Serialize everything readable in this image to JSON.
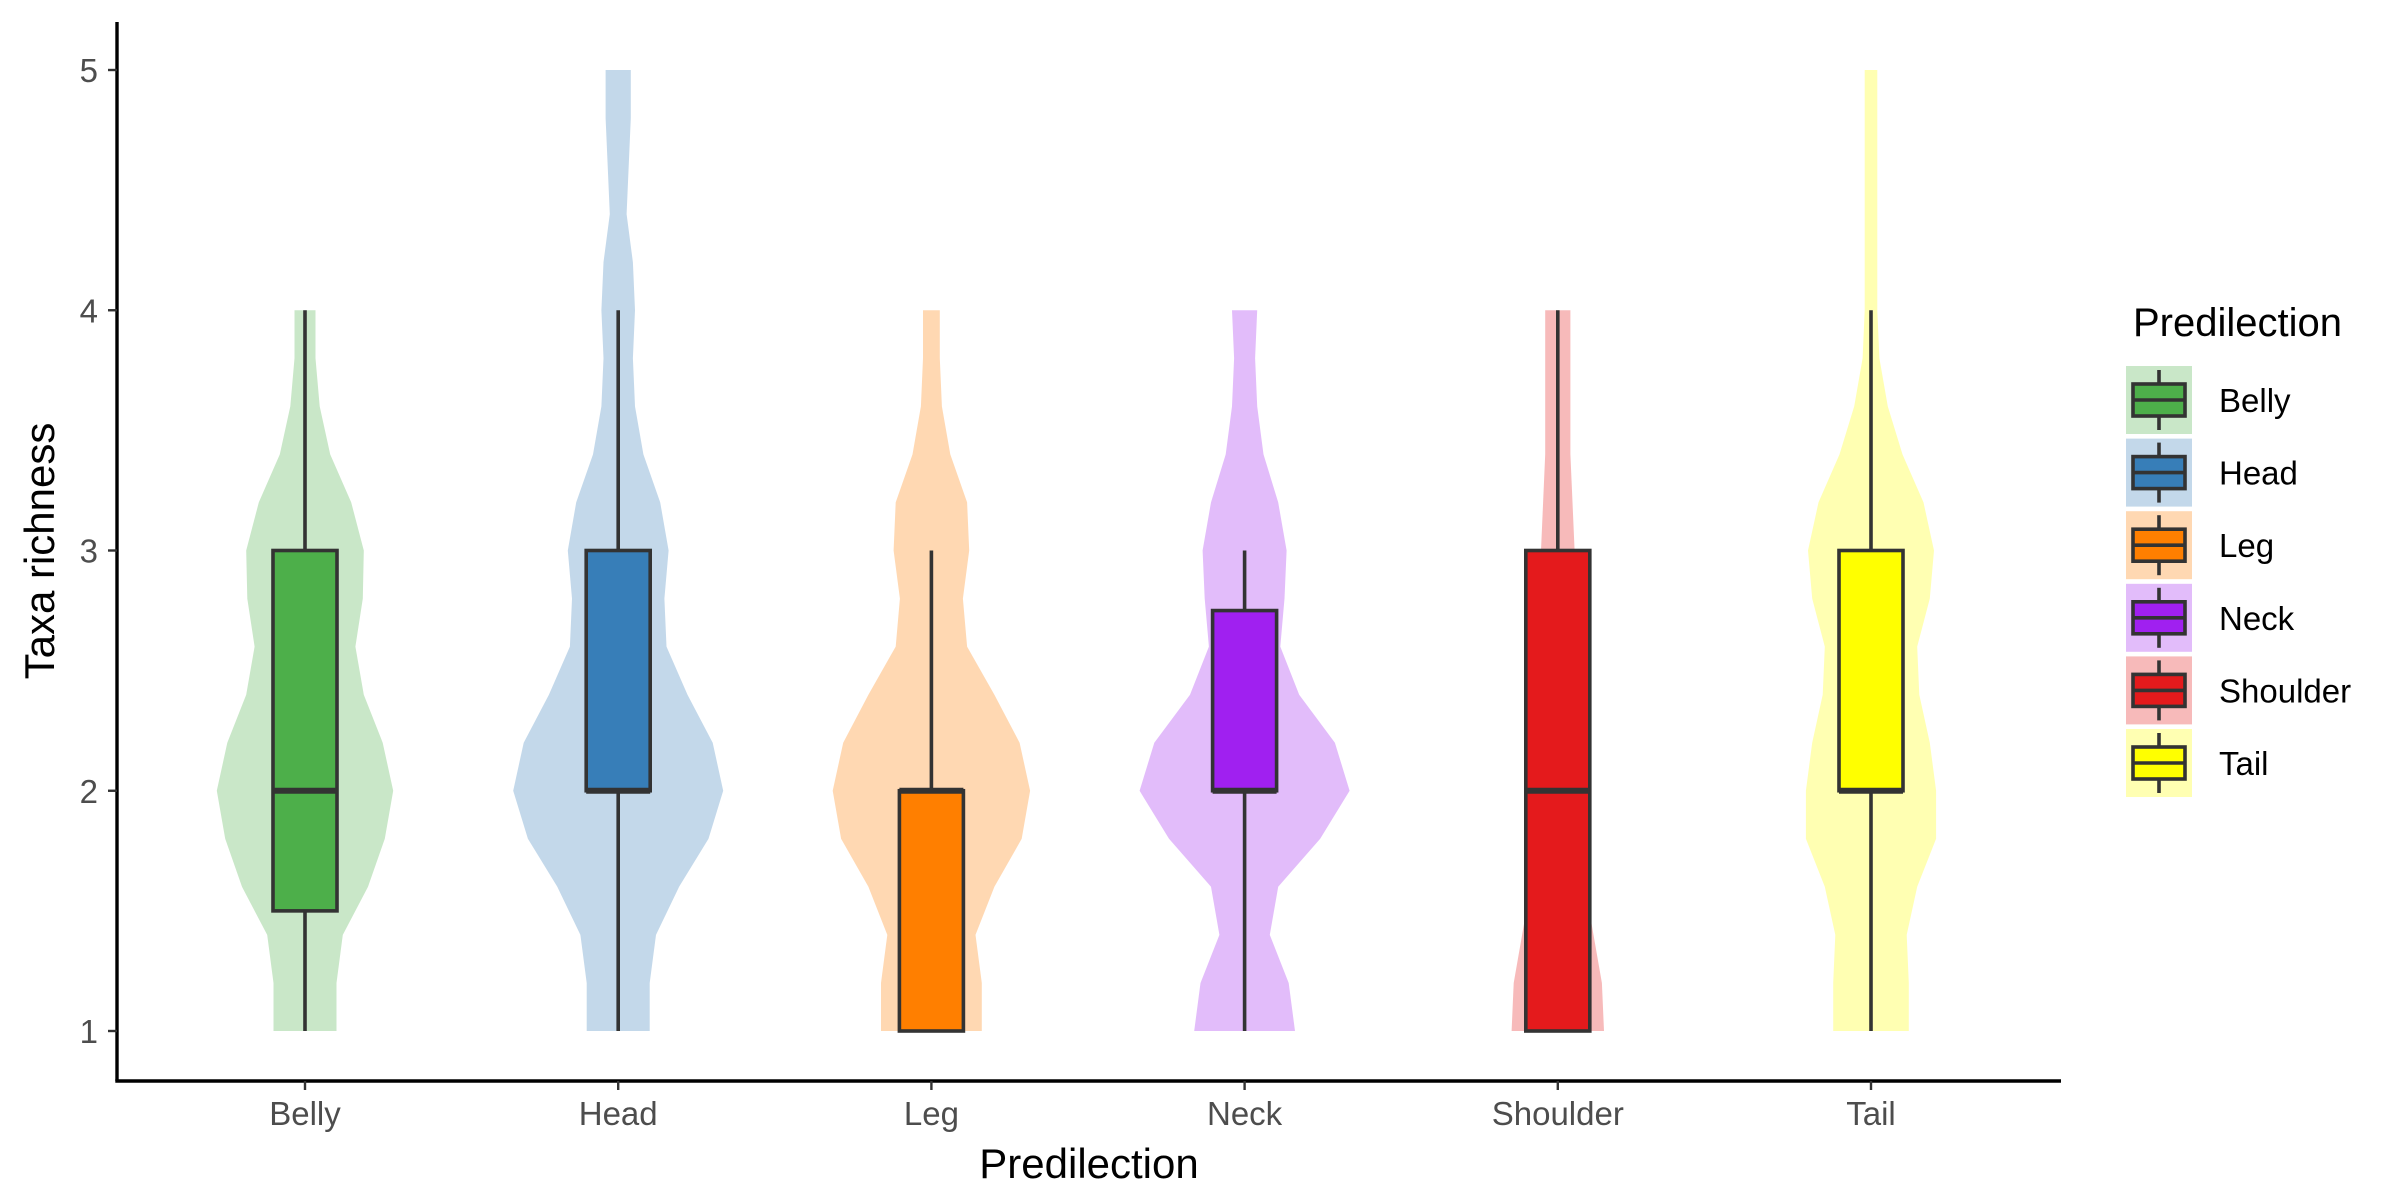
{
  "chart_data": {
    "type": "violin",
    "title": "",
    "xlabel": "Predilection",
    "ylabel": "Taxa richness",
    "ylim": [
      1,
      5
    ],
    "yticks": [
      1,
      2,
      3,
      4,
      5
    ],
    "categories": [
      "Belly",
      "Head",
      "Leg",
      "Neck",
      "Shoulder",
      "Tail"
    ],
    "legend": {
      "title": "Predilection",
      "position": "right"
    },
    "grid": false,
    "series": [
      {
        "name": "Belly",
        "color": "#4DAF4A",
        "box": {
          "min": 1,
          "q1": 1.5,
          "median": 2,
          "q3": 3,
          "max": 4
        },
        "violin_range": [
          1,
          4
        ],
        "density": [
          [
            1.0,
            0.3
          ],
          [
            1.2,
            0.3
          ],
          [
            1.4,
            0.36
          ],
          [
            1.6,
            0.6
          ],
          [
            1.8,
            0.76
          ],
          [
            2.0,
            0.84
          ],
          [
            2.2,
            0.74
          ],
          [
            2.4,
            0.56
          ],
          [
            2.6,
            0.48
          ],
          [
            2.8,
            0.55
          ],
          [
            3.0,
            0.56
          ],
          [
            3.2,
            0.44
          ],
          [
            3.4,
            0.24
          ],
          [
            3.6,
            0.14
          ],
          [
            3.8,
            0.1
          ],
          [
            4.0,
            0.1
          ]
        ]
      },
      {
        "name": "Head",
        "color": "#377EB8",
        "box": {
          "min": 1,
          "q1": 2,
          "median": 2,
          "q3": 3,
          "max": 4
        },
        "violin_range": [
          1,
          5
        ],
        "density": [
          [
            1.0,
            0.3
          ],
          [
            1.2,
            0.3
          ],
          [
            1.4,
            0.36
          ],
          [
            1.6,
            0.58
          ],
          [
            1.8,
            0.86
          ],
          [
            2.0,
            1.0
          ],
          [
            2.2,
            0.9
          ],
          [
            2.4,
            0.66
          ],
          [
            2.6,
            0.46
          ],
          [
            2.8,
            0.44
          ],
          [
            3.0,
            0.48
          ],
          [
            3.2,
            0.4
          ],
          [
            3.4,
            0.24
          ],
          [
            3.6,
            0.16
          ],
          [
            3.8,
            0.14
          ],
          [
            4.0,
            0.16
          ],
          [
            4.2,
            0.14
          ],
          [
            4.4,
            0.08
          ],
          [
            4.6,
            0.1
          ],
          [
            4.8,
            0.12
          ],
          [
            5.0,
            0.12
          ]
        ]
      },
      {
        "name": "Leg",
        "color": "#FF7F00",
        "box": {
          "min": 1,
          "q1": 1,
          "median": 2,
          "q3": 2,
          "max": 3
        },
        "violin_range": [
          1,
          4
        ],
        "density": [
          [
            1.0,
            0.48
          ],
          [
            1.2,
            0.48
          ],
          [
            1.4,
            0.42
          ],
          [
            1.6,
            0.6
          ],
          [
            1.8,
            0.86
          ],
          [
            2.0,
            0.94
          ],
          [
            2.2,
            0.84
          ],
          [
            2.4,
            0.6
          ],
          [
            2.6,
            0.34
          ],
          [
            2.8,
            0.3
          ],
          [
            3.0,
            0.36
          ],
          [
            3.2,
            0.34
          ],
          [
            3.4,
            0.18
          ],
          [
            3.6,
            0.1
          ],
          [
            3.8,
            0.08
          ],
          [
            4.0,
            0.08
          ]
        ]
      },
      {
        "name": "Neck",
        "color": "#A020F0",
        "box": {
          "min": 1,
          "q1": 2,
          "median": 2,
          "q3": 2.75,
          "max": 3
        },
        "violin_range": [
          1,
          4
        ],
        "density": [
          [
            1.0,
            0.48
          ],
          [
            1.2,
            0.42
          ],
          [
            1.4,
            0.24
          ],
          [
            1.6,
            0.32
          ],
          [
            1.8,
            0.72
          ],
          [
            2.0,
            1.0
          ],
          [
            2.2,
            0.86
          ],
          [
            2.4,
            0.52
          ],
          [
            2.6,
            0.34
          ],
          [
            2.8,
            0.38
          ],
          [
            3.0,
            0.4
          ],
          [
            3.2,
            0.32
          ],
          [
            3.4,
            0.18
          ],
          [
            3.6,
            0.12
          ],
          [
            3.8,
            0.1
          ],
          [
            4.0,
            0.12
          ]
        ]
      },
      {
        "name": "Shoulder",
        "color": "#E41A1C",
        "box": {
          "min": 1,
          "q1": 1,
          "median": 2,
          "q3": 3,
          "max": 4
        },
        "violin_range": [
          1,
          4
        ],
        "density": [
          [
            1.0,
            0.44
          ],
          [
            1.2,
            0.42
          ],
          [
            1.4,
            0.34
          ],
          [
            1.6,
            0.26
          ],
          [
            1.8,
            0.24
          ],
          [
            2.0,
            0.24
          ],
          [
            2.2,
            0.22
          ],
          [
            2.4,
            0.2
          ],
          [
            2.6,
            0.18
          ],
          [
            2.8,
            0.16
          ],
          [
            3.0,
            0.16
          ],
          [
            3.2,
            0.14
          ],
          [
            3.4,
            0.12
          ],
          [
            3.6,
            0.12
          ],
          [
            3.8,
            0.12
          ],
          [
            4.0,
            0.12
          ]
        ]
      },
      {
        "name": "Tail",
        "color": "#FFFF00",
        "box": {
          "min": 1,
          "q1": 2,
          "median": 2,
          "q3": 3,
          "max": 4
        },
        "violin_range": [
          1,
          5
        ],
        "density": [
          [
            1.0,
            0.36
          ],
          [
            1.2,
            0.36
          ],
          [
            1.4,
            0.34
          ],
          [
            1.6,
            0.44
          ],
          [
            1.8,
            0.62
          ],
          [
            2.0,
            0.62
          ],
          [
            2.2,
            0.56
          ],
          [
            2.4,
            0.46
          ],
          [
            2.6,
            0.44
          ],
          [
            2.8,
            0.56
          ],
          [
            3.0,
            0.6
          ],
          [
            3.2,
            0.5
          ],
          [
            3.4,
            0.3
          ],
          [
            3.6,
            0.16
          ],
          [
            3.8,
            0.08
          ],
          [
            4.0,
            0.06
          ],
          [
            4.2,
            0.06
          ],
          [
            4.4,
            0.06
          ],
          [
            4.6,
            0.06
          ],
          [
            4.8,
            0.06
          ],
          [
            5.0,
            0.06
          ]
        ]
      }
    ]
  }
}
